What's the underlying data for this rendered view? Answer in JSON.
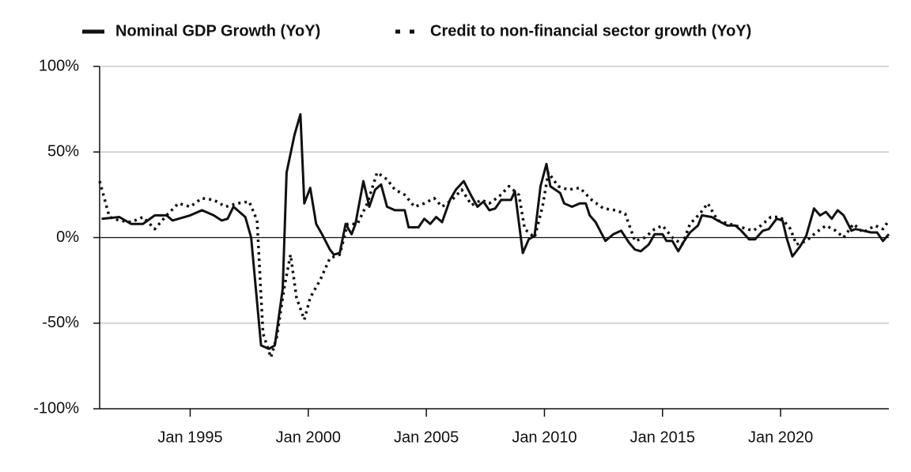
{
  "chart_data": {
    "type": "line",
    "xlim": [
      "1991-03",
      "2024-08"
    ],
    "xticks": [
      {
        "value": "1995-01",
        "label": "Jan 1995"
      },
      {
        "value": "2000-01",
        "label": "Jan 2000"
      },
      {
        "value": "2005-01",
        "label": "Jan 2005"
      },
      {
        "value": "2010-01",
        "label": "Jan 2010"
      },
      {
        "value": "2015-01",
        "label": "Jan 2015"
      },
      {
        "value": "2020-01",
        "label": "Jan 2020"
      }
    ],
    "ylim": [
      -100,
      100
    ],
    "yticks": [
      {
        "value": -100,
        "label": "-100%"
      },
      {
        "value": -50,
        "label": "-50%"
      },
      {
        "value": 0,
        "label": "0%"
      },
      {
        "value": 50,
        "label": "50%"
      },
      {
        "value": 100,
        "label": "100%"
      }
    ],
    "grid": true,
    "legend": "top",
    "series": [
      {
        "name": "Nominal GDP Growth (YoY)",
        "color": "#111111",
        "line_style": "solid",
        "x": [
          "1991-04",
          "1992-01",
          "1992-07",
          "1993-01",
          "1993-07",
          "1994-01",
          "1994-04",
          "1995-01",
          "1995-07",
          "1996-01",
          "1996-05",
          "1996-08",
          "1996-11",
          "1997-05",
          "1997-08",
          "1998-01",
          "1998-05",
          "1998-08",
          "1998-12",
          "1999-02",
          "1999-06",
          "1999-09",
          "1999-11",
          "2000-02",
          "2000-05",
          "2000-08",
          "2000-12",
          "2001-02",
          "2001-05",
          "2001-08",
          "2001-11",
          "2002-01",
          "2002-05",
          "2002-08",
          "2002-11",
          "2003-02",
          "2003-05",
          "2003-09",
          "2004-02",
          "2004-04",
          "2004-09",
          "2004-12",
          "2005-03",
          "2005-06",
          "2005-09",
          "2006-01",
          "2006-04",
          "2006-08",
          "2006-12",
          "2007-03",
          "2007-06",
          "2007-09",
          "2007-12",
          "2008-03",
          "2008-08",
          "2008-10",
          "2009-02",
          "2009-05",
          "2009-08",
          "2009-11",
          "2010-02",
          "2010-04",
          "2010-09",
          "2010-11",
          "2011-03",
          "2011-07",
          "2011-10",
          "2011-12",
          "2012-03",
          "2012-08",
          "2012-12",
          "2013-04",
          "2013-08",
          "2013-11",
          "2014-02",
          "2014-06",
          "2014-09",
          "2015-01",
          "2015-03",
          "2015-06",
          "2015-09",
          "2015-12",
          "2016-03",
          "2016-07",
          "2016-09",
          "2017-02",
          "2017-05",
          "2017-10",
          "2018-02",
          "2018-05",
          "2018-09",
          "2018-12",
          "2019-04",
          "2019-07",
          "2019-11",
          "2020-02",
          "2020-04",
          "2020-07",
          "2020-11",
          "2021-02",
          "2021-06",
          "2021-09",
          "2021-12",
          "2022-03",
          "2022-06",
          "2022-09",
          "2023-01",
          "2023-03",
          "2023-07",
          "2023-11",
          "2024-02",
          "2024-05",
          "2024-08"
        ],
        "values": [
          11,
          12,
          8,
          8,
          13,
          13,
          10,
          13,
          16,
          13,
          10,
          11,
          18,
          12,
          0,
          -63,
          -65,
          -63,
          -30,
          38,
          60,
          72,
          20,
          29,
          8,
          2,
          -7,
          -10,
          -9,
          8,
          2,
          8,
          33,
          18,
          28,
          31,
          18,
          16,
          16,
          6,
          6,
          11,
          8,
          12,
          9,
          22,
          28,
          33,
          24,
          18,
          21,
          16,
          17,
          22,
          22,
          27,
          -9,
          -1,
          1,
          30,
          43,
          30,
          26,
          20,
          18,
          20,
          20,
          13,
          9,
          -2,
          2,
          4,
          -3,
          -7,
          -8,
          -4,
          2,
          2,
          -2,
          -2,
          -8,
          -2,
          3,
          7,
          13,
          12,
          10,
          7,
          7,
          4,
          -1,
          -1,
          4,
          5,
          11,
          10,
          0,
          -11,
          -5,
          1,
          17,
          13,
          15,
          11,
          16,
          13,
          4,
          5,
          4,
          3,
          3,
          -2,
          2
        ]
      },
      {
        "name": "Credit to non-financial sector growth (YoY)",
        "color": "#111111",
        "line_style": "dotted",
        "x": [
          "1991-03",
          "1991-08",
          "1992-01",
          "1992-07",
          "1993-01",
          "1993-07",
          "1994-01",
          "1994-07",
          "1995-01",
          "1995-07",
          "1996-01",
          "1996-07",
          "1997-01",
          "1997-07",
          "1997-11",
          "1998-02",
          "1998-06",
          "1998-09",
          "1999-01",
          "1999-04",
          "1999-07",
          "1999-11",
          "2000-02",
          "2000-07",
          "2000-12",
          "2001-05",
          "2001-09",
          "2002-02",
          "2002-07",
          "2002-12",
          "2003-05",
          "2003-09",
          "2004-02",
          "2004-07",
          "2004-12",
          "2005-05",
          "2005-09",
          "2006-02",
          "2006-07",
          "2006-12",
          "2007-05",
          "2007-09",
          "2008-02",
          "2008-07",
          "2008-12",
          "2009-03",
          "2009-08",
          "2009-12",
          "2010-03",
          "2010-08",
          "2011-01",
          "2011-07",
          "2012-01",
          "2012-07",
          "2013-01",
          "2013-06",
          "2013-11",
          "2014-04",
          "2014-09",
          "2015-01",
          "2015-06",
          "2015-11",
          "2016-03",
          "2016-08",
          "2016-12",
          "2017-05",
          "2017-11",
          "2018-05",
          "2018-11",
          "2019-03",
          "2019-08",
          "2020-01",
          "2020-06",
          "2020-09",
          "2021-02",
          "2021-07",
          "2021-12",
          "2022-05",
          "2022-09",
          "2023-02",
          "2023-07",
          "2024-01",
          "2024-05",
          "2024-08"
        ],
        "values": [
          33,
          12,
          10,
          9,
          12,
          5,
          13,
          20,
          18,
          23,
          22,
          18,
          20,
          21,
          10,
          -56,
          -70,
          -58,
          -28,
          -10,
          -35,
          -48,
          -35,
          -25,
          -12,
          -10,
          8,
          8,
          20,
          38,
          34,
          28,
          25,
          18,
          20,
          23,
          18,
          22,
          28,
          19,
          22,
          20,
          24,
          30,
          25,
          5,
          0,
          18,
          38,
          30,
          28,
          29,
          22,
          17,
          16,
          14,
          -2,
          0,
          5,
          7,
          0,
          -4,
          8,
          14,
          20,
          10,
          8,
          6,
          4,
          7,
          12,
          12,
          5,
          -4,
          -2,
          3,
          7,
          4,
          0,
          8,
          3,
          7,
          5,
          10
        ]
      }
    ]
  }
}
